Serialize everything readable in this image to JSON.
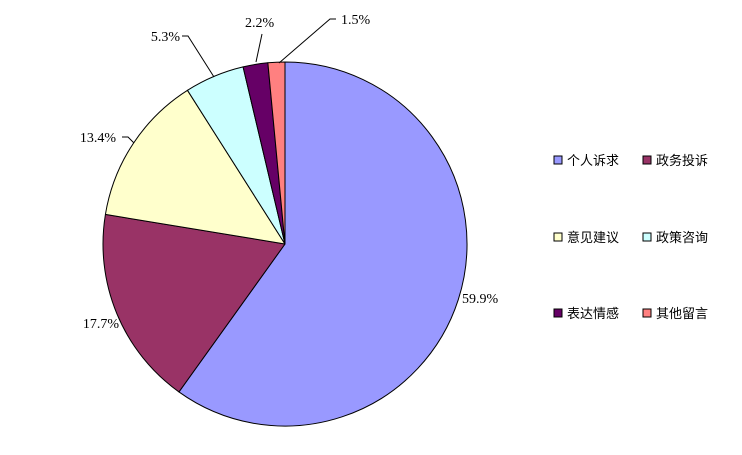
{
  "chart_data": {
    "type": "pie",
    "slices": [
      {
        "label": "个人诉求",
        "value": 59.9,
        "display": "59.9%",
        "color": "#9999FF"
      },
      {
        "label": "政务投诉",
        "value": 17.7,
        "display": "17.7%",
        "color": "#993366"
      },
      {
        "label": "意见建议",
        "value": 13.4,
        "display": "13.4%",
        "color": "#FFFFCC"
      },
      {
        "label": "政策咨询",
        "value": 5.3,
        "display": "5.3%",
        "color": "#CCFFFF"
      },
      {
        "label": "表达情感",
        "value": 2.2,
        "display": "2.2%",
        "color": "#660066"
      },
      {
        "label": "其他留言",
        "value": 1.5,
        "display": "1.5%",
        "color": "#FF8080"
      }
    ],
    "start": "12 o'clock",
    "direction": "clockwise",
    "legend_position": "right"
  }
}
